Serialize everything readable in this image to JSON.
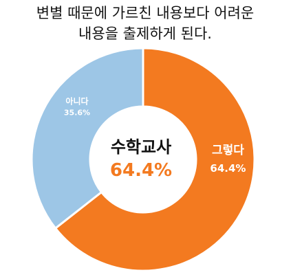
{
  "title": {
    "line1": "변별 때문에 가르친 내용보다 어려운",
    "line2": "내용을 출제하게 된다."
  },
  "center": {
    "label": "수학교사",
    "value": "64.4%"
  },
  "colors": {
    "yes": "#F37A20",
    "no": "#9DC6E6",
    "center_value": "#F37A20"
  },
  "chart_data": {
    "type": "pie",
    "variant": "donut",
    "categories": [
      "그렇다",
      "아니다"
    ],
    "values": [
      64.4,
      35.6
    ],
    "labels": [
      "64.4%",
      "35.6%"
    ],
    "title": "변별 때문에 가르친 내용보다 어려운 내용을 출제하게 된다.",
    "start": "12 o'clock",
    "direction": "clockwise"
  }
}
